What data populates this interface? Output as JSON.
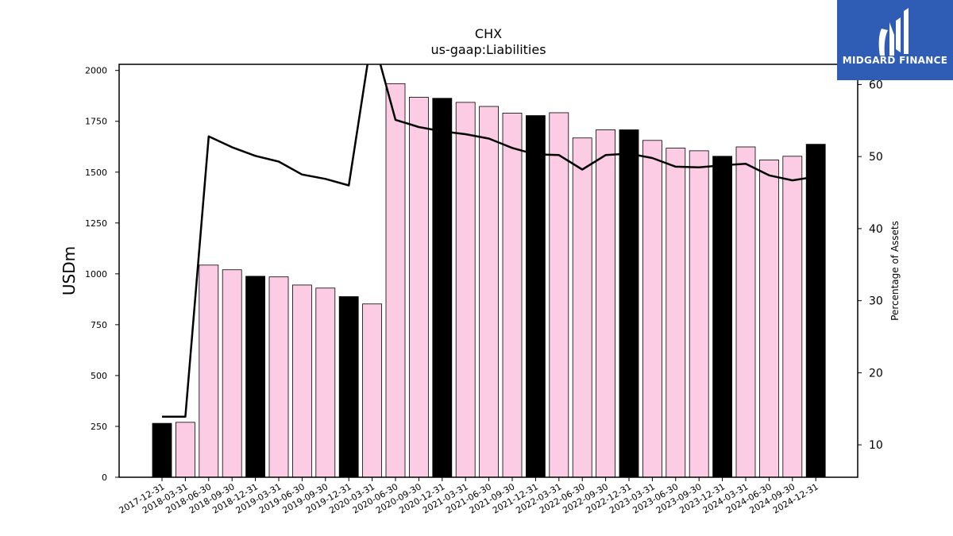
{
  "logo": {
    "text": "MIDGARD FINANCE",
    "background": "#2f5db5"
  },
  "chart_data": {
    "type": "bar",
    "title": "CHX",
    "subtitle": "us-gaap:Liabilities",
    "ylabel": "USDm",
    "y2label": "Percentage of Assets",
    "ylim": [
      0,
      2030
    ],
    "y2lim": [
      5.5,
      62.8
    ],
    "yticks": [
      0,
      250,
      500,
      750,
      1000,
      1250,
      1500,
      1750,
      2000
    ],
    "y2ticks": [
      10,
      20,
      30,
      40,
      50,
      60
    ],
    "categories": [
      "2017-12-31",
      "2018-03-31",
      "2018-06-30",
      "2018-09-30",
      "2018-12-31",
      "2019-03-31",
      "2019-06-30",
      "2019-09-30",
      "2019-12-31",
      "2020-03-31",
      "2020-06-30",
      "2020-09-30",
      "2020-12-31",
      "2021-03-31",
      "2021-06-30",
      "2021-09-30",
      "2021-12-31",
      "2022-03-31",
      "2022-06-30",
      "2022-09-30",
      "2022-12-31",
      "2023-03-31",
      "2023-06-30",
      "2023-09-30",
      "2023-12-31",
      "2024-03-31",
      "2024-06-30",
      "2024-09-30",
      "2024-12-31"
    ],
    "series": [
      {
        "kind": "bar",
        "values": [
          265,
          270,
          1043,
          1020,
          988,
          985,
          945,
          930,
          888,
          852,
          1935,
          1868,
          1863,
          1843,
          1823,
          1790,
          1778,
          1792,
          1668,
          1708,
          1708,
          1656,
          1618,
          1605,
          1578,
          1624,
          1560,
          1578,
          1637
        ],
        "colors": [
          "#000000",
          "#fccce4",
          "#fccce4",
          "#fccce4",
          "#000000",
          "#fccce4",
          "#fccce4",
          "#fccce4",
          "#000000",
          "#fccce4",
          "#fccce4",
          "#fccce4",
          "#000000",
          "#fccce4",
          "#fccce4",
          "#fccce4",
          "#000000",
          "#fccce4",
          "#fccce4",
          "#fccce4",
          "#000000",
          "#fccce4",
          "#fccce4",
          "#fccce4",
          "#000000",
          "#fccce4",
          "#fccce4",
          "#fccce4",
          "#000000"
        ]
      },
      {
        "kind": "line",
        "axis": "right",
        "color": "#000000",
        "values": [
          13.9,
          13.9,
          52.8,
          51.3,
          50.1,
          49.3,
          47.5,
          46.9,
          46.0,
          67.0,
          55.1,
          54.1,
          53.5,
          53.1,
          52.5,
          51.2,
          50.3,
          50.2,
          48.2,
          50.2,
          50.4,
          49.8,
          48.6,
          48.5,
          48.8,
          49.0,
          47.4,
          46.7,
          47.2
        ]
      }
    ],
    "grid": false,
    "legend": "none"
  }
}
